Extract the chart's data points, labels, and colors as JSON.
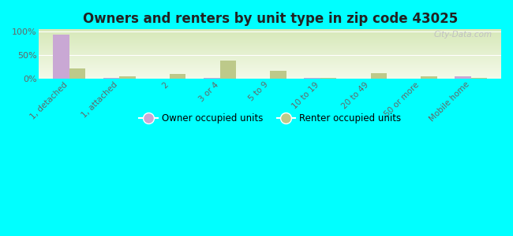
{
  "title": "Owners and renters by unit type in zip code 43025",
  "categories": [
    "1, detached",
    "1, attached",
    "2",
    "3 or 4",
    "5 to 9",
    "10 to 19",
    "20 to 49",
    "50 or more",
    "Mobile home"
  ],
  "owner_values": [
    93,
    1,
    0,
    1,
    0,
    1,
    0,
    0,
    5
  ],
  "renter_values": [
    22,
    4,
    10,
    38,
    16,
    1,
    11,
    4,
    1
  ],
  "owner_color": "#c9a8d4",
  "renter_color": "#bdc98a",
  "background_color": "#00ffff",
  "grad_top": "#d6e8b8",
  "grad_bottom": "#f5faea",
  "ytick_values": [
    0,
    50,
    100
  ],
  "ytick_labels": [
    "0%",
    "50%",
    "100%"
  ],
  "ylim": [
    0,
    105
  ],
  "bar_width": 0.32,
  "legend_owner": "Owner occupied units",
  "legend_renter": "Renter occupied units",
  "watermark": "City-Data.com"
}
